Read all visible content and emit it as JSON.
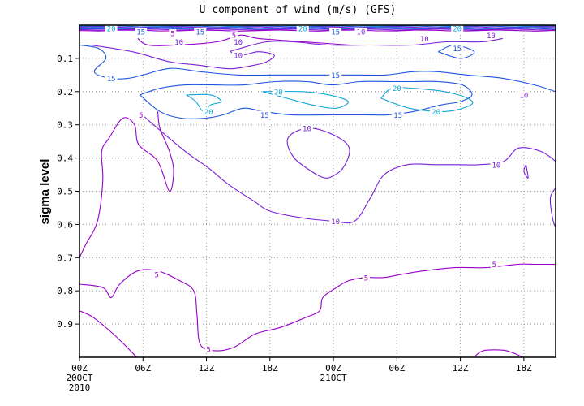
{
  "chart_data": {
    "type": "contour",
    "title": "U component of wind (m/s) (GFS)",
    "ylabel": "sigma level",
    "xlabel": "",
    "y_range": [
      1.0,
      0.0
    ],
    "y_ticks": [
      "0.1",
      "0.2",
      "0.3",
      "0.4",
      "0.5",
      "0.6",
      "0.7",
      "0.8",
      "0.9"
    ],
    "x_range_hours": [
      0,
      45
    ],
    "x_ticks": [
      {
        "hour": 0,
        "label": "00Z",
        "sub1": "20OCT",
        "sub2": "2010"
      },
      {
        "hour": 6,
        "label": "06Z",
        "sub1": "",
        "sub2": ""
      },
      {
        "hour": 12,
        "label": "12Z",
        "sub1": "",
        "sub2": ""
      },
      {
        "hour": 18,
        "label": "18Z",
        "sub1": "",
        "sub2": ""
      },
      {
        "hour": 24,
        "label": "00Z",
        "sub1": "21OCT",
        "sub2": ""
      },
      {
        "hour": 30,
        "label": "06Z",
        "sub1": "",
        "sub2": ""
      },
      {
        "hour": 36,
        "label": "12Z",
        "sub1": "",
        "sub2": ""
      },
      {
        "hour": 42,
        "label": "18Z",
        "sub1": "",
        "sub2": ""
      }
    ],
    "grid": true,
    "levels": [
      {
        "value": "5",
        "color": "#9900cc"
      },
      {
        "value": "10",
        "color": "#7a1fd6"
      },
      {
        "value": "15",
        "color": "#1f55e0"
      },
      {
        "value": "20",
        "color": "#12a6d6"
      }
    ],
    "contours": [
      {
        "level": 5,
        "points": [
          [
            0.0,
            0.7
          ],
          [
            0.6,
            0.66
          ],
          [
            1.7,
            0.59
          ],
          [
            2.2,
            0.47
          ],
          [
            2.1,
            0.38
          ],
          [
            2.8,
            0.34
          ],
          [
            4.1,
            0.28
          ],
          [
            5.2,
            0.3
          ],
          [
            5.6,
            0.36
          ],
          [
            7.4,
            0.41
          ],
          [
            8.5,
            0.5
          ],
          [
            8.9,
            0.44
          ],
          [
            8.5,
            0.38
          ],
          [
            7.6,
            0.31
          ],
          [
            7.4,
            0.26
          ]
        ]
      },
      {
        "level": 5,
        "points": [
          [
            0.0,
            0.78
          ],
          [
            2.2,
            0.79
          ],
          [
            3.0,
            0.82
          ],
          [
            3.8,
            0.78
          ],
          [
            5.5,
            0.74
          ],
          [
            7.4,
            0.74
          ],
          [
            9.5,
            0.77
          ],
          [
            10.8,
            0.8
          ],
          [
            11.1,
            0.87
          ],
          [
            11.4,
            0.96
          ],
          [
            12.7,
            0.98
          ],
          [
            14.6,
            0.97
          ],
          [
            16.6,
            0.93
          ],
          [
            19.0,
            0.91
          ],
          [
            21.4,
            0.88
          ],
          [
            22.7,
            0.86
          ],
          [
            23.0,
            0.82
          ],
          [
            24.3,
            0.79
          ],
          [
            25.4,
            0.77
          ],
          [
            27.0,
            0.76
          ],
          [
            28.7,
            0.76
          ],
          [
            30.5,
            0.75
          ],
          [
            32.5,
            0.74
          ],
          [
            35.5,
            0.73
          ],
          [
            38.4,
            0.73
          ],
          [
            41.4,
            0.72
          ],
          [
            43.0,
            0.72
          ],
          [
            45.0,
            0.72
          ]
        ]
      },
      {
        "level": 5,
        "points": [
          [
            0.0,
            0.86
          ],
          [
            1.3,
            0.88
          ],
          [
            3.2,
            0.93
          ],
          [
            4.8,
            0.98
          ],
          [
            5.4,
            1.0
          ]
        ]
      },
      {
        "level": 5,
        "points": [
          [
            37.3,
            1.0
          ],
          [
            38.2,
            0.98
          ],
          [
            40.3,
            0.98
          ],
          [
            41.9,
            1.0
          ]
        ]
      },
      {
        "level": 5,
        "points": [
          [
            25.6,
            0.06
          ],
          [
            21.2,
            0.05
          ],
          [
            16.9,
            0.04
          ],
          [
            15.2,
            0.03
          ],
          [
            13.0,
            0.05
          ],
          [
            9.1,
            0.06
          ],
          [
            6.5,
            0.06
          ],
          [
            5.5,
            0.04
          ]
        ]
      },
      {
        "level": 10,
        "points": [
          [
            1.1,
            0.06
          ],
          [
            5.0,
            0.08
          ],
          [
            8.5,
            0.11
          ],
          [
            11.1,
            0.12
          ],
          [
            13.6,
            0.13
          ],
          [
            14.8,
            0.13
          ],
          [
            16.6,
            0.12
          ],
          [
            17.7,
            0.11
          ],
          [
            18.4,
            0.09
          ],
          [
            16.9,
            0.08
          ],
          [
            15.4,
            0.09
          ],
          [
            14.3,
            0.08
          ],
          [
            15.2,
            0.07
          ],
          [
            17.7,
            0.05
          ],
          [
            20.2,
            0.05
          ],
          [
            23.6,
            0.06
          ],
          [
            27.4,
            0.06
          ],
          [
            31.5,
            0.06
          ],
          [
            34.7,
            0.05
          ],
          [
            38.0,
            0.05
          ],
          [
            40.0,
            0.04
          ]
        ]
      },
      {
        "level": 10,
        "points": [
          [
            5.6,
            0.26
          ],
          [
            7.0,
            0.3
          ],
          [
            10.0,
            0.38
          ],
          [
            12.2,
            0.43
          ],
          [
            14.1,
            0.48
          ],
          [
            16.5,
            0.53
          ],
          [
            18.0,
            0.56
          ],
          [
            21.0,
            0.58
          ],
          [
            24.0,
            0.59
          ],
          [
            26.0,
            0.59
          ],
          [
            27.5,
            0.52
          ],
          [
            28.8,
            0.45
          ],
          [
            31.0,
            0.42
          ],
          [
            33.6,
            0.42
          ],
          [
            35.8,
            0.42
          ],
          [
            37.8,
            0.42
          ],
          [
            40.1,
            0.41
          ],
          [
            41.5,
            0.37
          ],
          [
            43.6,
            0.38
          ],
          [
            45.0,
            0.41
          ]
        ]
      },
      {
        "level": 10,
        "points": [
          [
            22.4,
            0.45
          ],
          [
            20.3,
            0.4
          ],
          [
            19.7,
            0.34
          ],
          [
            21.6,
            0.31
          ],
          [
            24.0,
            0.33
          ],
          [
            25.5,
            0.37
          ],
          [
            24.9,
            0.43
          ],
          [
            23.5,
            0.46
          ],
          [
            22.4,
            0.45
          ]
        ]
      },
      {
        "level": 10,
        "points": [
          [
            45.0,
            0.49
          ],
          [
            44.5,
            0.52
          ],
          [
            44.7,
            0.58
          ],
          [
            45.0,
            0.61
          ]
        ]
      },
      {
        "level": 10,
        "points": [
          [
            42.2,
            0.42
          ],
          [
            42.4,
            0.46
          ],
          [
            42.0,
            0.44
          ],
          [
            42.2,
            0.42
          ]
        ]
      },
      {
        "level": 15,
        "points": [
          [
            0.0,
            0.06
          ],
          [
            1.8,
            0.07
          ],
          [
            2.5,
            0.1
          ],
          [
            1.4,
            0.14
          ],
          [
            2.9,
            0.16
          ],
          [
            4.6,
            0.16
          ],
          [
            6.0,
            0.15
          ],
          [
            8.6,
            0.13
          ],
          [
            11.4,
            0.14
          ],
          [
            15.0,
            0.15
          ],
          [
            18.5,
            0.15
          ],
          [
            21.2,
            0.15
          ],
          [
            24.0,
            0.15
          ],
          [
            26.5,
            0.15
          ],
          [
            29.0,
            0.15
          ],
          [
            31.5,
            0.14
          ],
          [
            33.8,
            0.14
          ],
          [
            36.6,
            0.15
          ],
          [
            40.0,
            0.16
          ],
          [
            43.0,
            0.18
          ],
          [
            45.0,
            0.2
          ]
        ]
      },
      {
        "level": 15,
        "points": [
          [
            5.7,
            0.21
          ],
          [
            7.6,
            0.26
          ],
          [
            9.6,
            0.28
          ],
          [
            11.9,
            0.28
          ],
          [
            13.6,
            0.27
          ],
          [
            15.5,
            0.25
          ],
          [
            17.4,
            0.26
          ],
          [
            20.0,
            0.27
          ],
          [
            23.9,
            0.27
          ],
          [
            27.0,
            0.27
          ],
          [
            29.2,
            0.27
          ],
          [
            31.6,
            0.26
          ],
          [
            34.2,
            0.24
          ],
          [
            36.0,
            0.23
          ],
          [
            37.1,
            0.21
          ],
          [
            36.2,
            0.18
          ],
          [
            33.9,
            0.17
          ],
          [
            31.5,
            0.17
          ],
          [
            29.6,
            0.17
          ],
          [
            26.5,
            0.17
          ],
          [
            23.9,
            0.18
          ],
          [
            21.5,
            0.17
          ],
          [
            18.5,
            0.17
          ],
          [
            15.5,
            0.18
          ],
          [
            12.6,
            0.18
          ],
          [
            10.0,
            0.18
          ],
          [
            7.6,
            0.19
          ],
          [
            5.7,
            0.21
          ]
        ]
      },
      {
        "level": 15,
        "points": [
          [
            33.9,
            0.08
          ],
          [
            35.4,
            0.06
          ],
          [
            37.3,
            0.08
          ],
          [
            36.0,
            0.1
          ],
          [
            33.9,
            0.08
          ]
        ]
      },
      {
        "level": 20,
        "points": [
          [
            10.1,
            0.21
          ],
          [
            11.0,
            0.23
          ],
          [
            11.7,
            0.26
          ],
          [
            12.4,
            0.24
          ],
          [
            13.4,
            0.23
          ],
          [
            12.4,
            0.21
          ],
          [
            10.1,
            0.21
          ]
        ]
      },
      {
        "level": 20,
        "points": [
          [
            17.3,
            0.2
          ],
          [
            19.6,
            0.22
          ],
          [
            22.0,
            0.24
          ],
          [
            24.2,
            0.25
          ],
          [
            25.4,
            0.23
          ],
          [
            23.6,
            0.21
          ],
          [
            21.0,
            0.2
          ],
          [
            17.3,
            0.2
          ]
        ]
      },
      {
        "level": 20,
        "points": [
          [
            28.5,
            0.22
          ],
          [
            31.2,
            0.25
          ],
          [
            34.6,
            0.26
          ],
          [
            37.0,
            0.24
          ],
          [
            36.7,
            0.22
          ],
          [
            34.5,
            0.2
          ],
          [
            31.5,
            0.19
          ],
          [
            29.5,
            0.19
          ],
          [
            28.5,
            0.22
          ]
        ]
      }
    ],
    "contour_labels": [
      {
        "text": "5",
        "hour": 5.8,
        "sigma": 0.27,
        "level": 5
      },
      {
        "text": "5",
        "hour": 7.3,
        "sigma": 0.75,
        "level": 5
      },
      {
        "text": "5",
        "hour": 27.1,
        "sigma": 0.76,
        "level": 5
      },
      {
        "text": "5",
        "hour": 39.2,
        "sigma": 0.72,
        "level": 5
      },
      {
        "text": "5",
        "hour": 12.2,
        "sigma": 0.975,
        "level": 5
      },
      {
        "text": "5",
        "hour": 14.6,
        "sigma": 0.03,
        "level": 5
      },
      {
        "text": "5",
        "hour": 8.8,
        "sigma": 0.025,
        "level": 5
      },
      {
        "text": "10",
        "hour": 9.4,
        "sigma": 0.05,
        "level": 10
      },
      {
        "text": "10",
        "hour": 15.0,
        "sigma": 0.05,
        "level": 10
      },
      {
        "text": "10",
        "hour": 15.0,
        "sigma": 0.09,
        "level": 10
      },
      {
        "text": "10",
        "hour": 32.6,
        "sigma": 0.04,
        "level": 10
      },
      {
        "text": "10",
        "hour": 26.6,
        "sigma": 0.02,
        "level": 10
      },
      {
        "text": "10",
        "hour": 21.5,
        "sigma": 0.31,
        "level": 10
      },
      {
        "text": "10",
        "hour": 24.2,
        "sigma": 0.59,
        "level": 10
      },
      {
        "text": "10",
        "hour": 39.4,
        "sigma": 0.42,
        "level": 10
      },
      {
        "text": "10",
        "hour": 42.0,
        "sigma": 0.21,
        "level": 10
      },
      {
        "text": "10",
        "hour": 38.9,
        "sigma": 0.03,
        "level": 10
      },
      {
        "text": "15",
        "hour": 3.0,
        "sigma": 0.16,
        "level": 15
      },
      {
        "text": "15",
        "hour": 5.8,
        "sigma": 0.02,
        "level": 15
      },
      {
        "text": "15",
        "hour": 11.4,
        "sigma": 0.02,
        "level": 15
      },
      {
        "text": "15",
        "hour": 17.5,
        "sigma": 0.27,
        "level": 15
      },
      {
        "text": "15",
        "hour": 24.2,
        "sigma": 0.15,
        "level": 15
      },
      {
        "text": "15",
        "hour": 30.1,
        "sigma": 0.27,
        "level": 15
      },
      {
        "text": "15",
        "hour": 35.7,
        "sigma": 0.07,
        "level": 15
      },
      {
        "text": "15",
        "hour": 24.2,
        "sigma": 0.02,
        "level": 15
      },
      {
        "text": "20",
        "hour": 3.0,
        "sigma": 0.01,
        "level": 20
      },
      {
        "text": "20",
        "hour": 12.2,
        "sigma": 0.26,
        "level": 20
      },
      {
        "text": "20",
        "hour": 18.8,
        "sigma": 0.2,
        "level": 20
      },
      {
        "text": "20",
        "hour": 30.0,
        "sigma": 0.19,
        "level": 20
      },
      {
        "text": "20",
        "hour": 33.7,
        "sigma": 0.26,
        "level": 20
      },
      {
        "text": "20",
        "hour": 21.1,
        "sigma": 0.01,
        "level": 20
      },
      {
        "text": "20",
        "hour": 35.7,
        "sigma": 0.01,
        "level": 20
      }
    ]
  }
}
